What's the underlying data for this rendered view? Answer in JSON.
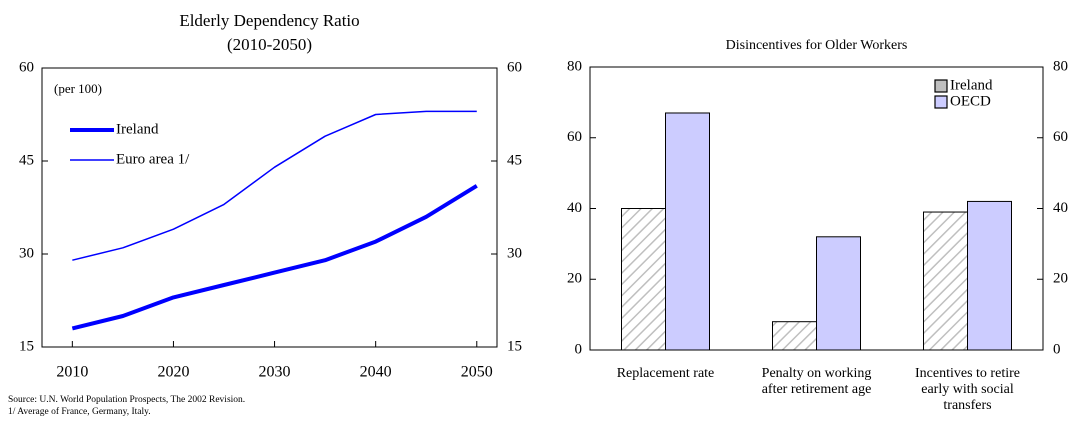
{
  "chart_data": [
    {
      "type": "line",
      "title": "Elderly Dependency Ratio",
      "subtitle": "(2010-2050)",
      "annotation": "(per 100)",
      "notes": [
        "Source:  U.N. World Population Prospects, The 2002 Revision.",
        "1/ Average of France, Germany, Italy."
      ],
      "x": [
        2010,
        2015,
        2020,
        2025,
        2030,
        2035,
        2040,
        2045,
        2050
      ],
      "xlim": [
        2007,
        2052
      ],
      "xticks": [
        2010,
        2020,
        2030,
        2040,
        2050
      ],
      "ylim": [
        15,
        60
      ],
      "yticks": [
        15,
        30,
        45,
        60
      ],
      "y2lim": [
        15,
        60
      ],
      "y2ticks": [
        15,
        30,
        45,
        60
      ],
      "series": [
        {
          "name": "Ireland",
          "color": "#0000ff",
          "values": [
            18,
            20,
            23,
            25,
            27,
            29,
            32,
            36,
            41
          ]
        },
        {
          "name": "Euro area 1/",
          "color": "#0000ff",
          "values": [
            29,
            31,
            34,
            38,
            44,
            49,
            52.5,
            53,
            53
          ]
        }
      ]
    },
    {
      "type": "bar",
      "title": "Disincentives for Older Workers",
      "categories": [
        [
          "Replacement rate"
        ],
        [
          "Penalty on working",
          "after retirement age"
        ],
        [
          "Incentives to retire",
          "early with social",
          "transfers"
        ]
      ],
      "ylim": [
        0,
        80
      ],
      "yticks": [
        0,
        20,
        40,
        60,
        80
      ],
      "y2lim": [
        0,
        80
      ],
      "y2ticks": [
        0,
        20,
        40,
        60,
        80
      ],
      "series": [
        {
          "name": "Ireland",
          "color": "#bfbfbf",
          "values": [
            40,
            8,
            39
          ]
        },
        {
          "name": "OECD",
          "color": "#ccccff",
          "values": [
            67,
            32,
            42
          ]
        }
      ]
    }
  ]
}
